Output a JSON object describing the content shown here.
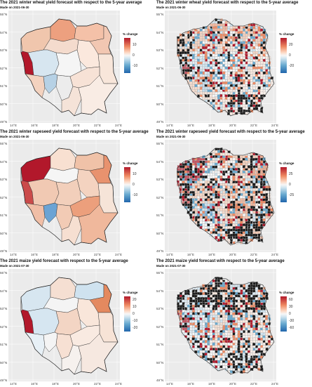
{
  "lat_ticks": [
    "55°N",
    "54°N",
    "53°N",
    "52°N",
    "51°N",
    "50°N",
    "49°N"
  ],
  "lon_ticks": [
    "14°E",
    "16°E",
    "18°E",
    "20°E",
    "22°E",
    "24°E"
  ],
  "panels": [
    {
      "title": "The 2021 winter wheat yield forecast with respect to the 5-year average",
      "subtitle": "Made on 2021-06-30",
      "legend_title": "% change",
      "legend_ticks": [
        "10",
        "0",
        "-10"
      ],
      "style": "regions",
      "scale": "wheat"
    },
    {
      "title": "The 2021 winter wheat yield forecast with respect to the 5-year average",
      "subtitle": "Made on 2021-06-30",
      "legend_title": "% change",
      "legend_ticks": [
        "20",
        "0",
        "-20"
      ],
      "style": "cells",
      "scale": "wheat"
    },
    {
      "title": "The 2021 winter rapeseed yield forecast with respect to the 5-year average",
      "subtitle": "Made on 2021-06-30",
      "legend_title": "% change",
      "legend_ticks": [
        "10",
        "0",
        "-10"
      ],
      "style": "regions",
      "scale": "rapeseed"
    },
    {
      "title": "The 2021 winter rapeseed yield forecast with respect to the 5-year average",
      "subtitle": "Made on 2021-06-30",
      "legend_title": "% change",
      "legend_ticks": [
        "25",
        "0",
        "-25"
      ],
      "style": "cells",
      "scale": "rapeseed"
    },
    {
      "title": "The 2021 maize yield forecast with respect to the 5-year average",
      "subtitle": "Made on 2021-07-30",
      "legend_title": "% change",
      "legend_ticks": [
        "20",
        "10",
        "0",
        "-10",
        "-20"
      ],
      "style": "regions",
      "scale": "maize"
    },
    {
      "title": "The 2021 maize yield forecast with respect to the 5-year average",
      "subtitle": "Made on 2021-07-30",
      "legend_title": "% change",
      "legend_ticks": [
        "60",
        "30",
        "0",
        "-30",
        "-60"
      ],
      "style": "cells",
      "scale": "maize"
    }
  ],
  "colors": {
    "high": "#b2182b",
    "mid_high": "#ef8a62",
    "light_pos": "#fddbc7",
    "neutral": "#f7f7f7",
    "light_neg": "#d1e5f0",
    "mid_low": "#67a9cf",
    "low": "#2166ac",
    "masked": "#1a1a1a",
    "panel_bg": "#ebebeb"
  },
  "region_fills": {
    "wheat": [
      "#f0c6ad",
      "#eda07f",
      "#f4c1a8",
      "#f2c7b2",
      "#b2182b",
      "#f4dbcd",
      "#fbe8dd",
      "#d7e6f0",
      "#f5f5f5",
      "#f8e6da",
      "#f3d2bf",
      "#b6d1e5",
      "#ececec",
      "#f7e2d6",
      "#f5e3d8",
      "#f9ece4"
    ],
    "rapeseed": [
      "#b2182b",
      "#f8e0d1",
      "#f0c2a8",
      "#e8926e",
      "#ca4a4a",
      "#f5f5f5",
      "#f4d3c0",
      "#f1c9b3",
      "#f2cfbb",
      "#f6e4d8",
      "#f0bea6",
      "#6ba3d4",
      "#f2cbb5",
      "#ec9f7c",
      "#f6dfd1",
      "#f0b89c"
    ],
    "maize": [
      "#d7e6f0",
      "#f5dfd2",
      "#cfe2ef",
      "#e4895f",
      "#b2182b",
      "#f4f4f4",
      "#f9e6da",
      "#d6e6f1",
      "#f3d5c4",
      "#f7e3d6",
      "#e7f0f6",
      "#f4f4f4",
      "#f7e0d3",
      "#f9eae1",
      "#f6f1ee",
      "#f6e8e0"
    ]
  }
}
